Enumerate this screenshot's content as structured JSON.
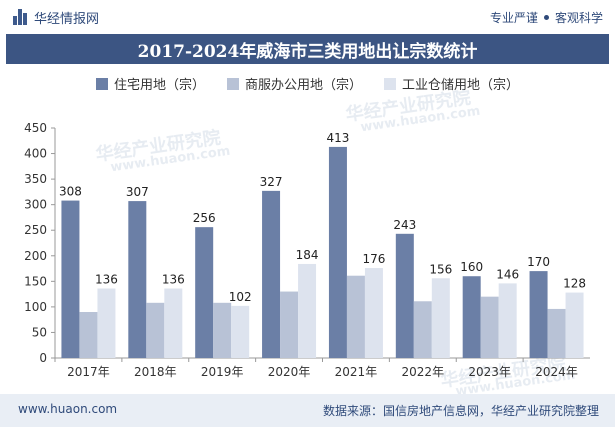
{
  "header": {
    "brand": "华经情报网",
    "slogan_left": "专业严谨",
    "slogan_right": "客观科学"
  },
  "chart_data": {
    "type": "bar",
    "title": "2017-2024年威海市三类用地出让宗数统计",
    "categories": [
      "2017年",
      "2018年",
      "2019年",
      "2020年",
      "2021年",
      "2022年",
      "2023年",
      "2024年"
    ],
    "series": [
      {
        "name": "住宅用地（宗）",
        "color": "#6b7fa6",
        "values": [
          308,
          307,
          256,
          327,
          413,
          243,
          160,
          170
        ],
        "labels_shown": true
      },
      {
        "name": "商服办公用地（宗）",
        "color": "#b8c2d6",
        "values": [
          90,
          108,
          108,
          130,
          161,
          111,
          120,
          96
        ],
        "labels_shown": false
      },
      {
        "name": "工业仓储用地（宗）",
        "color": "#dde3ee",
        "values": [
          136,
          136,
          102,
          184,
          176,
          156,
          146,
          128
        ],
        "labels_shown": true
      }
    ],
    "ylim": [
      0,
      450
    ],
    "yticks": [
      "0",
      "50",
      "100",
      "150",
      "200",
      "250",
      "300",
      "350",
      "400",
      "450"
    ],
    "grid": false,
    "legend": "top-center"
  },
  "watermarks": {
    "mark1": "华经产业研究院",
    "mark2": "www.huaon.com"
  },
  "footer": {
    "website": "www.huaon.com",
    "source": "数据来源：国信房地产信息网，华经产业研究院整理"
  }
}
